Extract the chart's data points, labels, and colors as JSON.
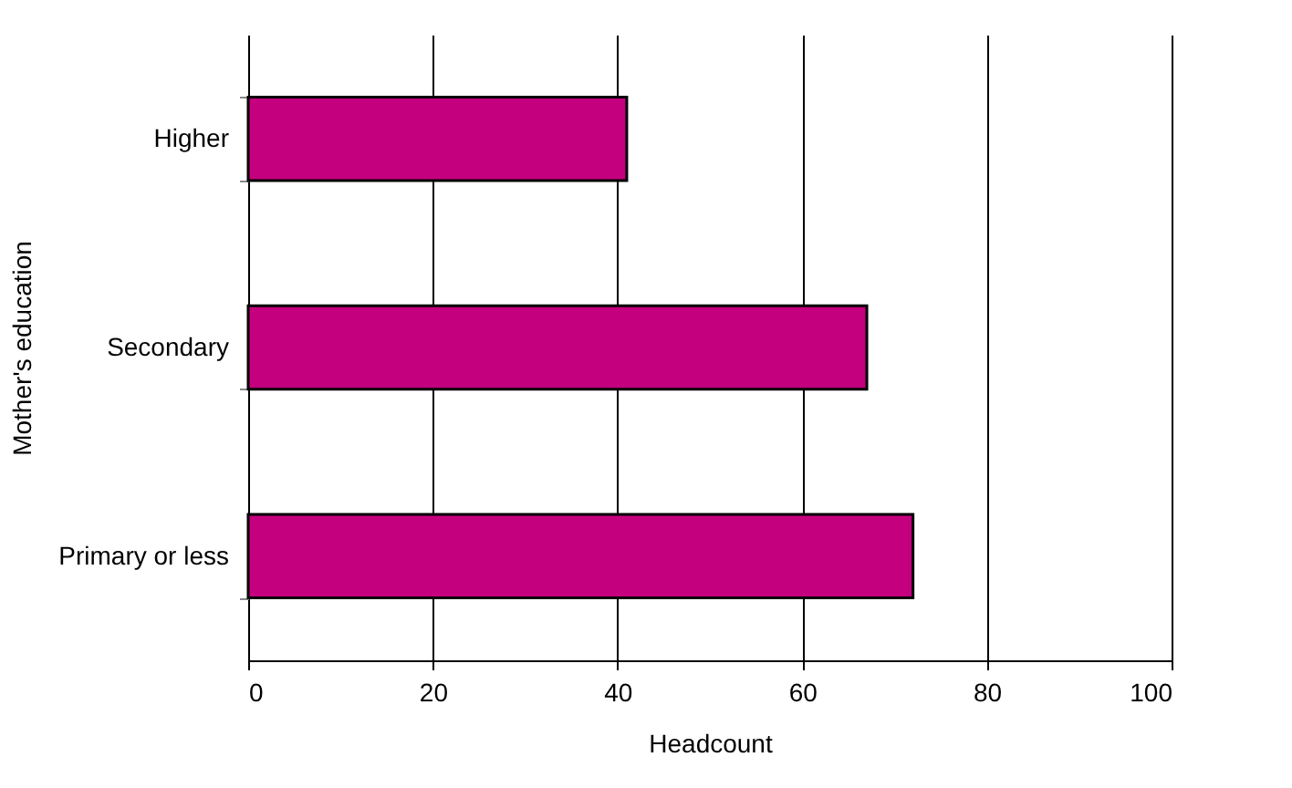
{
  "chart_data": {
    "type": "bar",
    "orientation": "horizontal",
    "xlabel": "Headcount",
    "ylabel": "Mother's education",
    "categories": [
      "Higher",
      "Secondary",
      "Primary or less"
    ],
    "values": [
      41,
      67,
      72
    ],
    "color": "#c4007f",
    "xlim": [
      0,
      100
    ],
    "xticks": [
      0,
      20,
      40,
      60,
      80,
      100
    ],
    "grid": "x"
  }
}
